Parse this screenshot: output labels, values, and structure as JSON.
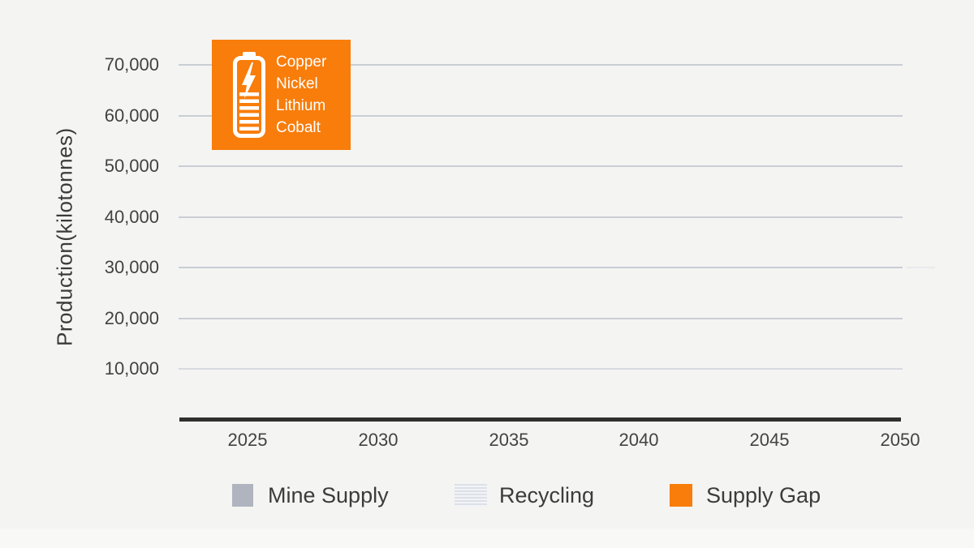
{
  "chart_data": {
    "type": "bar",
    "title": "",
    "xlabel": "",
    "ylabel": "Production(kilotonnes)",
    "x_ticks": [
      "2025",
      "2030",
      "2035",
      "2040",
      "2045",
      "2050"
    ],
    "y_ticks": [
      "70,000",
      "60,000",
      "50,000",
      "40,000",
      "30,000",
      "20,000",
      "10,000"
    ],
    "ylim": [
      0,
      75000
    ],
    "y_tick_step": 10000,
    "grid": true,
    "legend_position": "bottom",
    "plot_is_empty": true,
    "series": [
      {
        "name": "Mine Supply",
        "color": "#AFB4BF",
        "swatch_style": "solid",
        "values": []
      },
      {
        "name": "Recycling",
        "color": "#EDEFF3",
        "swatch_style": "striped",
        "values": []
      },
      {
        "name": "Supply Gap",
        "color": "#F87D0B",
        "swatch_style": "solid",
        "values": []
      }
    ]
  },
  "annotation_badge": {
    "icon": "battery-charging-icon",
    "background": "#F87D0B",
    "materials": [
      "Copper",
      "Nickel",
      "Lithium",
      "Cobalt"
    ]
  },
  "colors": {
    "background": "#F4F4F2",
    "gridline": "#C9CDD4",
    "axis_line": "#2F2F2F",
    "tick_text": "#424242",
    "legend_text": "#3B3B3B",
    "badge_text": "#FFFFFF"
  }
}
